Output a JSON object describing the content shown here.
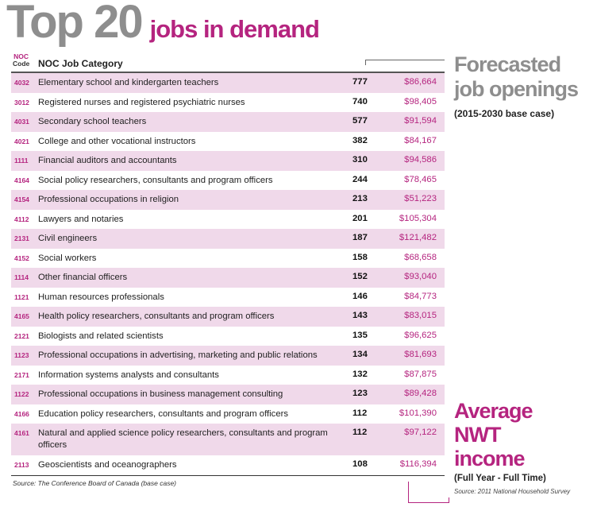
{
  "title": {
    "main": "Top 20",
    "sub": "jobs in demand"
  },
  "header": {
    "noc_line1": "NOC",
    "noc_line2": "Code",
    "category": "NOC Job Category"
  },
  "forecast": {
    "title_line1": "Forecasted",
    "title_line2": "job openings",
    "subtitle": "(2015-2030 base case)"
  },
  "income": {
    "title_line1": "Average",
    "title_line2": "NWT",
    "title_line3": "income",
    "subtitle": "(Full Year - Full Time)",
    "source": "Source: 2011 National Household Survey"
  },
  "source": "Source: The Conference Board of Canada (base case)",
  "colors": {
    "accent": "#b5247f",
    "band": "#f0d9ea",
    "title_gray": "#8e8e8e"
  },
  "rows": [
    {
      "code": "4032",
      "category": "Elementary school and kindergarten teachers",
      "openings": "777",
      "income": "$86,664"
    },
    {
      "code": "3012",
      "category": "Registered nurses and registered psychiatric nurses",
      "openings": "740",
      "income": "$98,405"
    },
    {
      "code": "4031",
      "category": "Secondary school teachers",
      "openings": "577",
      "income": "$91,594"
    },
    {
      "code": "4021",
      "category": "College and other vocational instructors",
      "openings": "382",
      "income": "$84,167"
    },
    {
      "code": "1111",
      "category": "Financial auditors and accountants",
      "openings": "310",
      "income": "$94,586"
    },
    {
      "code": "4164",
      "category": "Social policy researchers, consultants and program officers",
      "openings": "244",
      "income": "$78,465"
    },
    {
      "code": "4154",
      "category": "Professional occupations in religion",
      "openings": "213",
      "income": "$51,223"
    },
    {
      "code": "4112",
      "category": "Lawyers and notaries",
      "openings": "201",
      "income": "$105,304"
    },
    {
      "code": "2131",
      "category": "Civil engineers",
      "openings": "187",
      "income": "$121,482"
    },
    {
      "code": "4152",
      "category": "Social workers",
      "openings": "158",
      "income": "$68,658"
    },
    {
      "code": "1114",
      "category": "Other financial officers",
      "openings": "152",
      "income": "$93,040"
    },
    {
      "code": "1121",
      "category": "Human resources professionals",
      "openings": "146",
      "income": "$84,773"
    },
    {
      "code": "4165",
      "category": "Health policy researchers, consultants and program officers",
      "openings": "143",
      "income": "$83,015"
    },
    {
      "code": "2121",
      "category": "Biologists and related scientists",
      "openings": "135",
      "income": "$96,625"
    },
    {
      "code": "1123",
      "category": "Professional occupations in advertising, marketing and public relations",
      "openings": "134",
      "income": "$81,693"
    },
    {
      "code": "2171",
      "category": "Information systems analysts and consultants",
      "openings": "132",
      "income": "$87,875"
    },
    {
      "code": "1122",
      "category": "Professional occupations in business management consulting",
      "openings": "123",
      "income": "$89,428"
    },
    {
      "code": "4166",
      "category": "Education policy researchers, consultants and program officers",
      "openings": "112",
      "income": "$101,390"
    },
    {
      "code": "4161",
      "category": "Natural and applied science policy researchers, consultants and program officers",
      "openings": "112",
      "income": "$97,122"
    },
    {
      "code": "2113",
      "category": "Geoscientists and oceanographers",
      "openings": "108",
      "income": "$116,394"
    }
  ]
}
